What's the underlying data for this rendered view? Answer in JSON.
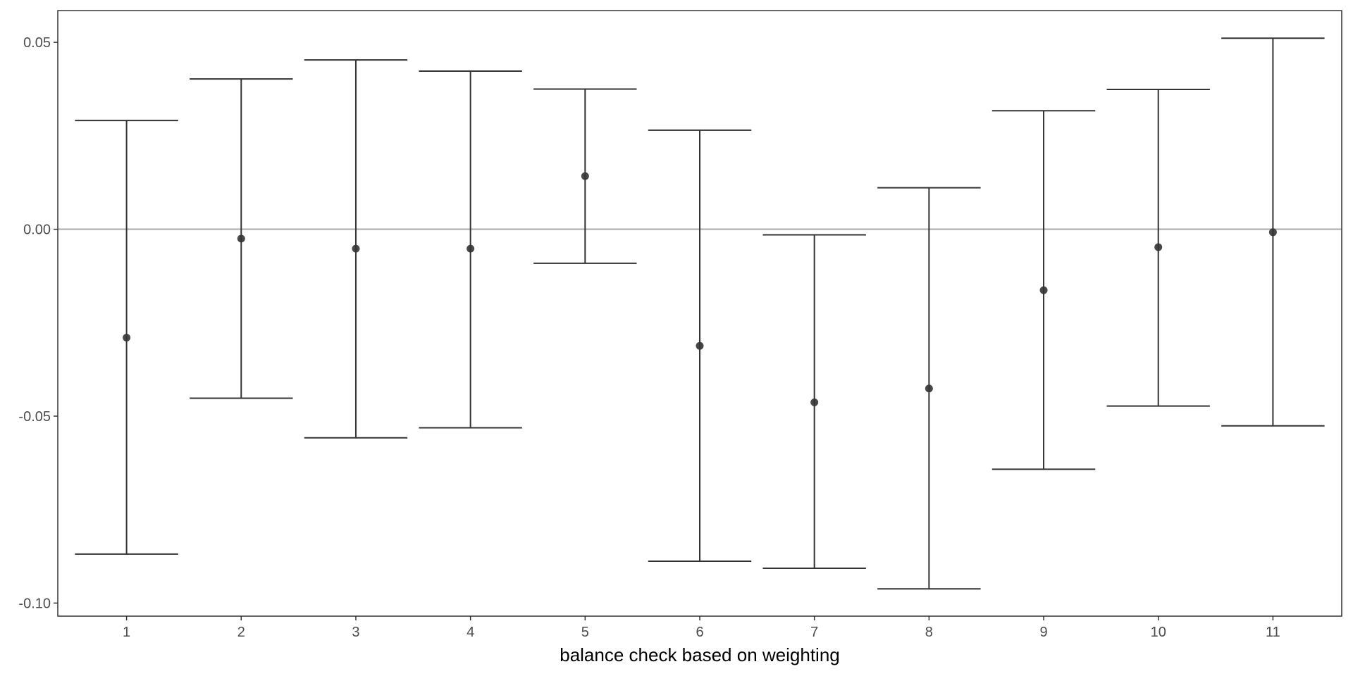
{
  "chart_data": {
    "type": "errorbar",
    "title": "",
    "xlabel": "balance check based on weighting",
    "ylabel": "",
    "categories": [
      "1",
      "2",
      "3",
      "4",
      "5",
      "6",
      "7",
      "8",
      "9",
      "10",
      "11"
    ],
    "estimates": [
      -0.029,
      -0.0025,
      -0.0052,
      -0.0052,
      0.0142,
      -0.0312,
      -0.0463,
      -0.0426,
      -0.0163,
      -0.0048,
      -0.0008
    ],
    "lower": [
      -0.0869,
      -0.0452,
      -0.0558,
      -0.0531,
      -0.0091,
      -0.0888,
      -0.0907,
      -0.0962,
      -0.0642,
      -0.0473,
      -0.0526
    ],
    "upper": [
      0.0291,
      0.0402,
      0.0453,
      0.0423,
      0.0375,
      0.0265,
      -0.0015,
      0.0111,
      0.0317,
      0.0374,
      0.0511
    ],
    "yticks": [
      0.05,
      0.0,
      -0.05,
      -0.1
    ],
    "ytick_labels": [
      "0.05",
      "0.00",
      "-0.05",
      "-0.10"
    ],
    "ylim": [
      -0.1035,
      0.0585
    ],
    "reference_line": 0,
    "grid": false,
    "colors": {
      "marks": "#333333",
      "reference_line": "#aaaaaa",
      "panel_border": "#333333",
      "tick_text": "#4d4d4d"
    }
  }
}
